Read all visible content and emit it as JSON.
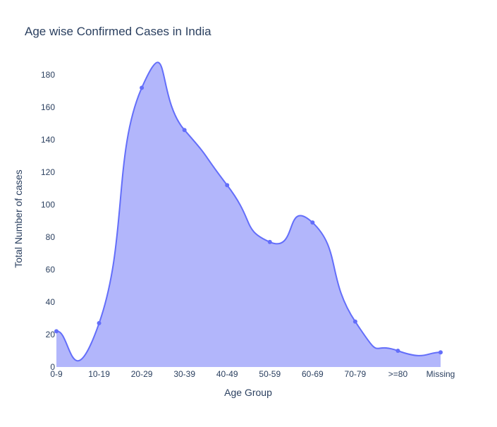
{
  "chart_data": {
    "type": "area",
    "title": "Age wise Confirmed Cases in India",
    "xlabel": "Age Group",
    "ylabel": "Total Number of cases",
    "categories": [
      "0-9",
      "10-19",
      "20-29",
      "30-39",
      "40-49",
      "50-59",
      "60-69",
      "70-79",
      ">=80",
      "Missing"
    ],
    "series": [
      {
        "values": [
          22,
          27,
          172,
          146,
          112,
          77,
          89,
          28,
          10,
          9
        ]
      }
    ],
    "ylim": [
      0,
      180
    ],
    "yticks": [
      0,
      20,
      40,
      60,
      80,
      100,
      120,
      140,
      160,
      180
    ],
    "grid": false,
    "colors": {
      "line": "#636efa",
      "fill": "#b2b6fb",
      "text": "#2a3f5f"
    }
  }
}
